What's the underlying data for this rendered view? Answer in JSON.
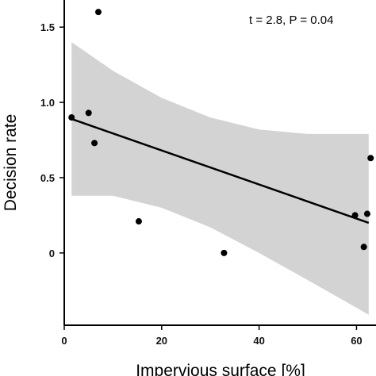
{
  "chart_data": {
    "type": "scatter",
    "title": "",
    "xlabel": "Impervious surface [%]",
    "ylabel": "Decision rate",
    "annotation": "t = 2.8, P = 0.04",
    "xlim": [
      0,
      64
    ],
    "ylim": [
      -0.48,
      1.68
    ],
    "x_ticks": [
      0,
      20,
      40,
      60
    ],
    "x_tick_labels": [
      "0",
      "20",
      "40",
      "60"
    ],
    "y_ticks": [
      0,
      0.5,
      1.0,
      1.5
    ],
    "y_tick_labels": [
      "0",
      "0.5",
      "1.0",
      "1.5"
    ],
    "points": [
      {
        "x": 1.5,
        "y": 0.9
      },
      {
        "x": 5,
        "y": 0.93
      },
      {
        "x": 6.2,
        "y": 0.73
      },
      {
        "x": 7,
        "y": 1.6
      },
      {
        "x": 15.3,
        "y": 0.21
      },
      {
        "x": 32.8,
        "y": 0.0
      },
      {
        "x": 59.7,
        "y": 0.25
      },
      {
        "x": 61.5,
        "y": 0.04
      },
      {
        "x": 62.2,
        "y": 0.26
      },
      {
        "x": 62.9,
        "y": 0.63
      }
    ],
    "fit_line": [
      {
        "x": 1.5,
        "y": 0.89
      },
      {
        "x": 62.5,
        "y": 0.2
      }
    ],
    "confidence_band": {
      "x": [
        1.5,
        10,
        20,
        30,
        40,
        50,
        62.5
      ],
      "upper": [
        1.4,
        1.21,
        1.03,
        0.9,
        0.82,
        0.79,
        0.79
      ],
      "lower": [
        0.38,
        0.38,
        0.3,
        0.17,
        0.0,
        -0.18,
        -0.41
      ]
    },
    "grid": false,
    "colors": {
      "points": "#000000",
      "line": "#000000",
      "band": "#d3d3d3"
    }
  }
}
